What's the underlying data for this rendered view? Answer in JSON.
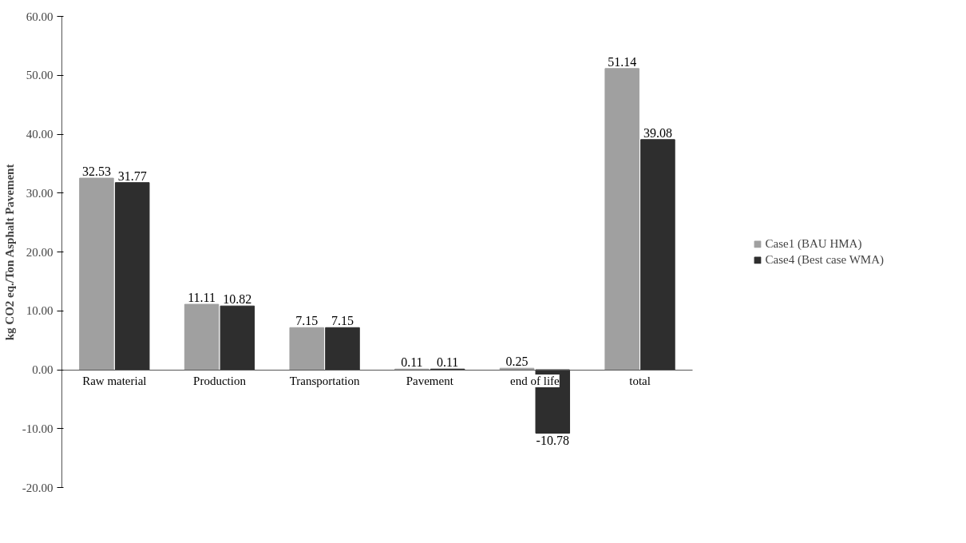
{
  "chart_data": {
    "type": "bar",
    "ylabel": "kg CO2 eq./Ton Asphalt Pavement",
    "categories": [
      "Raw material",
      "Production",
      "Transportation",
      "Pavement",
      "end of life",
      "total"
    ],
    "series": [
      {
        "name": "Case1 (BAU HMA)",
        "color": "#a0a0a0",
        "values": [
          32.53,
          11.11,
          7.15,
          0.11,
          0.25,
          51.14
        ]
      },
      {
        "name": "Case4 (Best case WMA)",
        "color": "#2e2e2e",
        "values": [
          31.77,
          10.82,
          7.15,
          0.11,
          -10.78,
          39.08
        ]
      }
    ],
    "ylim": [
      -20,
      60
    ],
    "yticks": [
      {
        "value": -20,
        "label": "-20.00"
      },
      {
        "value": -10,
        "label": "-10.00"
      },
      {
        "value": 0,
        "label": "0.00"
      },
      {
        "value": 10,
        "label": "10.00"
      },
      {
        "value": 20,
        "label": "20.00"
      },
      {
        "value": 30,
        "label": "30.00"
      },
      {
        "value": 40,
        "label": "40.00"
      },
      {
        "value": 50,
        "label": "50.00"
      },
      {
        "value": 60,
        "label": "60.00"
      }
    ],
    "data_labels": true,
    "grid": false,
    "legend": "right"
  }
}
